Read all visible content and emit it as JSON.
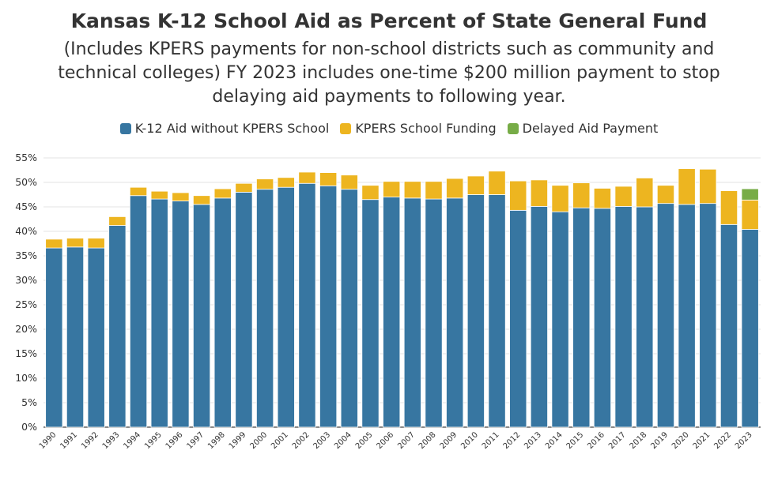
{
  "chart_data": {
    "type": "bar",
    "stacked": true,
    "title": "Kansas K-12 School Aid as Percent of State General Fund",
    "subtitle": "(Includes KPERS payments for non-school districts such as community and technical colleges) FY 2023 includes one-time $200 million payment to stop delaying aid payments to following year.",
    "legend_position": "top-center",
    "grid": true,
    "ylim": [
      0,
      55
    ],
    "y_ticks": [
      "0%",
      "5%",
      "10%",
      "15%",
      "20%",
      "25%",
      "30%",
      "35%",
      "40%",
      "45%",
      "50%",
      "55%"
    ],
    "categories": [
      "1990",
      "1991",
      "1992",
      "1993",
      "1994",
      "1995",
      "1996",
      "1997",
      "1998",
      "1999",
      "2000",
      "2001",
      "2002",
      "2003",
      "2004",
      "2005",
      "2006",
      "2007",
      "2008",
      "2009",
      "2010",
      "2011",
      "2012",
      "2013",
      "2014",
      "2015",
      "2016",
      "2017",
      "2018",
      "2019",
      "2020",
      "2021",
      "2022",
      "2023"
    ],
    "series": [
      {
        "name": "K-12 Aid without KPERS School",
        "color": "#3776a1",
        "values": [
          36.6,
          36.8,
          36.6,
          41.2,
          47.3,
          46.6,
          46.2,
          45.5,
          46.8,
          48.0,
          48.6,
          49.0,
          49.8,
          49.3,
          48.6,
          46.5,
          47.0,
          46.8,
          46.6,
          46.8,
          47.5,
          47.5,
          44.3,
          45.1,
          44.0,
          44.8,
          44.7,
          45.1,
          45.0,
          45.7,
          45.5,
          45.7,
          41.4,
          40.4
        ]
      },
      {
        "name": "KPERS School Funding",
        "color": "#edb520",
        "values": [
          1.8,
          1.8,
          2.0,
          1.8,
          1.7,
          1.6,
          1.7,
          1.8,
          1.9,
          1.8,
          2.1,
          2.0,
          2.3,
          2.7,
          2.9,
          2.9,
          3.2,
          3.4,
          3.6,
          4.0,
          3.8,
          4.8,
          6.0,
          5.4,
          5.4,
          5.1,
          4.1,
          4.1,
          5.9,
          3.7,
          7.3,
          7.0,
          6.9,
          6.0
        ]
      },
      {
        "name": "Delayed Aid Payment",
        "color": "#77ac47",
        "values": [
          0,
          0,
          0,
          0,
          0,
          0,
          0,
          0,
          0,
          0,
          0,
          0,
          0,
          0,
          0,
          0,
          0,
          0,
          0,
          0,
          0,
          0,
          0,
          0,
          0,
          0,
          0,
          0,
          0,
          0,
          0,
          0,
          0,
          2.3
        ]
      }
    ]
  }
}
